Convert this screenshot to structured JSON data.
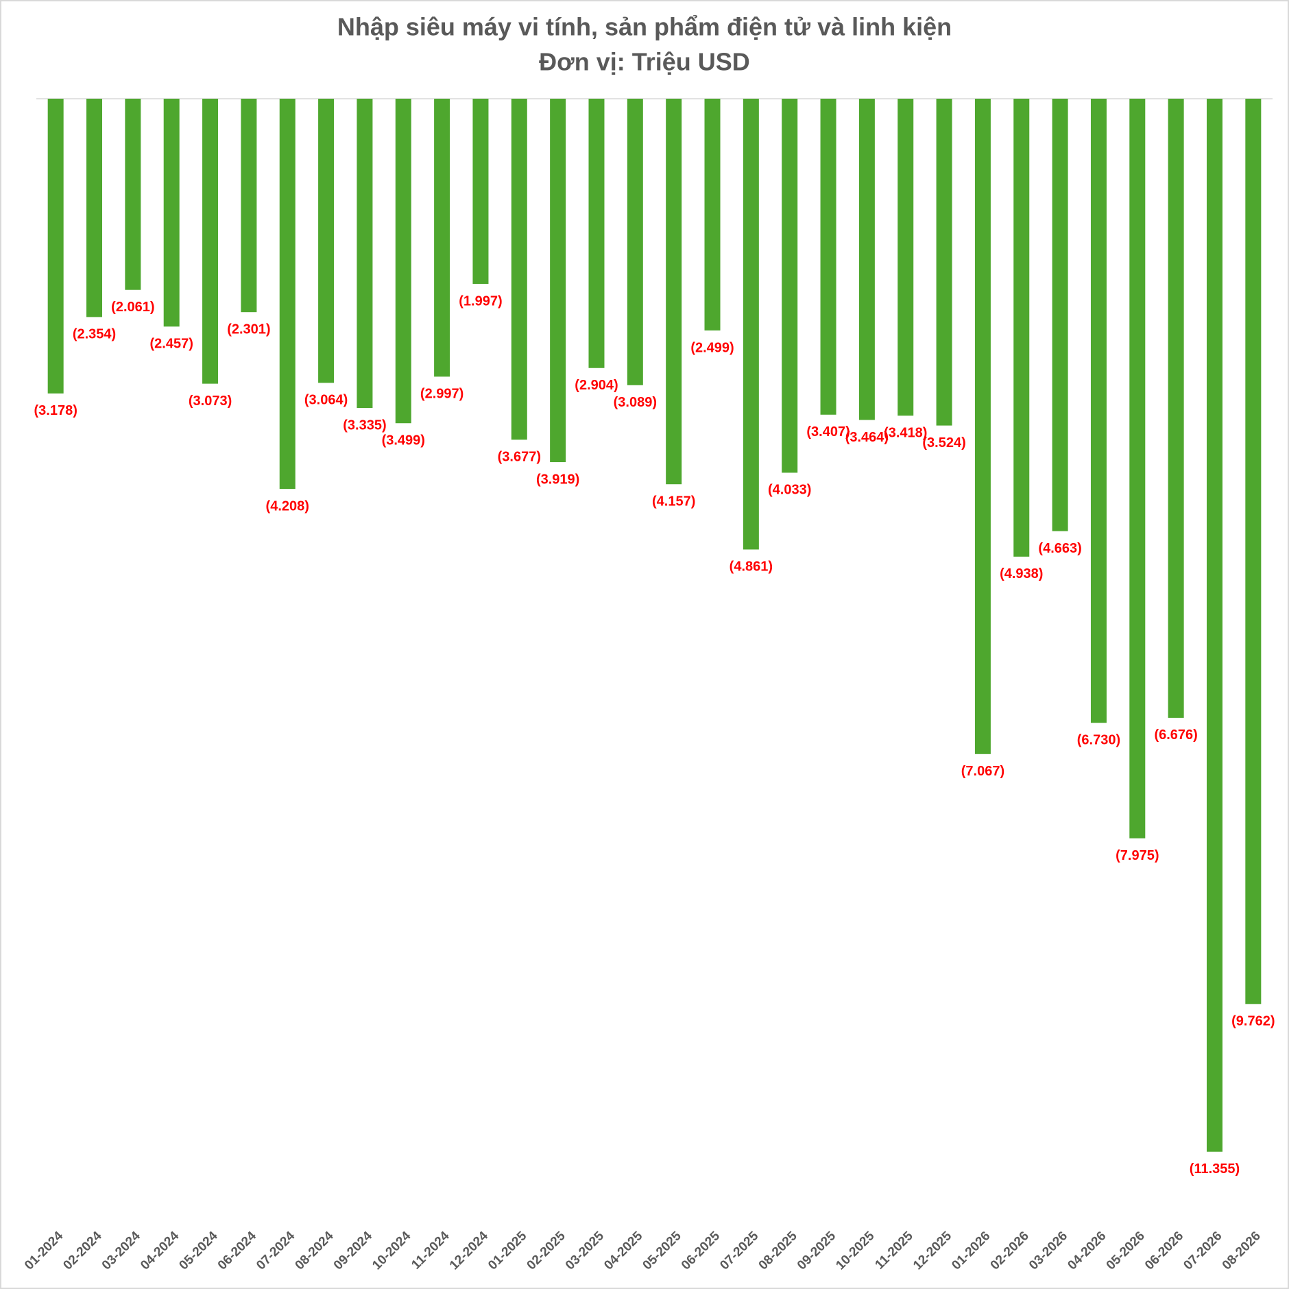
{
  "chart_data": {
    "type": "bar",
    "title": "Nhập siêu máy vi tính, sản phẩm điện tử và linh kiện",
    "subtitle": "Đơn vị: Triệu USD",
    "categories": [
      "01-2024",
      "02-2024",
      "03-2024",
      "04-2024",
      "05-2024",
      "06-2024",
      "07-2024",
      "08-2024",
      "09-2024",
      "10-2024",
      "11-2024",
      "12-2024",
      "01-2025",
      "02-2025",
      "03-2025",
      "04-2025",
      "05-2025",
      "06-2025",
      "07-2025",
      "08-2025",
      "09-2025",
      "10-2025",
      "11-2025",
      "12-2025",
      "01-2026",
      "02-2026",
      "03-2026",
      "04-2026",
      "05-2026",
      "06-2026",
      "07-2026",
      "08-2026"
    ],
    "values": [
      -3178,
      -2354,
      -2061,
      -2457,
      -3073,
      -2301,
      -4208,
      -3064,
      -3335,
      -3499,
      -2997,
      -1997,
      -3677,
      -3919,
      -2904,
      -3089,
      -4157,
      -2499,
      -4861,
      -4033,
      -3407,
      -3464,
      -3418,
      -3524,
      -7067,
      -4938,
      -4663,
      -6730,
      -7975,
      -6676,
      -11355,
      -9762
    ],
    "value_labels": [
      "(3.178)",
      "(2.354)",
      "(2.061)",
      "(2.457)",
      "(3.073)",
      "(2.301)",
      "(4.208)",
      "(3.064)",
      "(3.335)",
      "(3.499)",
      "(2.997)",
      "(1.997)",
      "(3.677)",
      "(3.919)",
      "(2.904)",
      "(3.089)",
      "(4.157)",
      "(2.499)",
      "(4.861)",
      "(4.033)",
      "(3.407)",
      "(3.464)",
      "(3.418)",
      "(3.524)",
      "(7.067)",
      "(4.938)",
      "(4.663)",
      "(6.730)",
      "(7.975)",
      "(6.676)",
      "(11.355)",
      "(9.762)"
    ],
    "color": "#4ea72e",
    "label_color": "#ff0000",
    "ylim": [
      -12000,
      0
    ]
  }
}
